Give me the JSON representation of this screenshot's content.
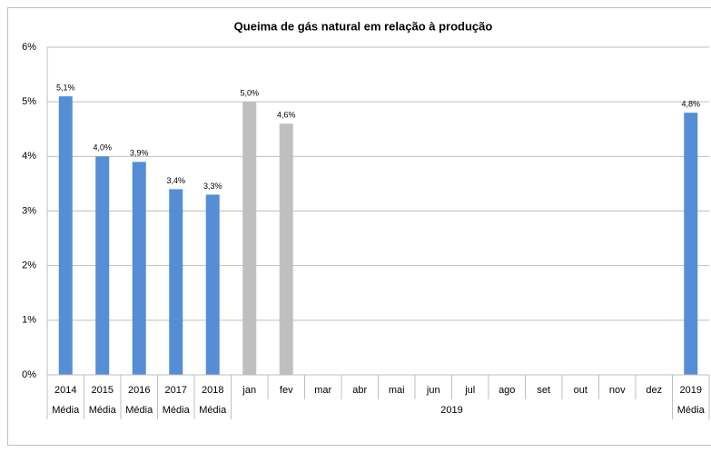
{
  "chart_data": {
    "type": "bar",
    "title": "Queima de gás natural em relação à produção",
    "categories": [
      "2014",
      "2015",
      "2016",
      "2017",
      "2018",
      "jan",
      "fev",
      "mar",
      "abr",
      "mai",
      "jun",
      "jul",
      "ago",
      "set",
      "out",
      "nov",
      "dez",
      "2019"
    ],
    "values": [
      5.1,
      4.0,
      3.9,
      3.4,
      3.3,
      5.0,
      4.6,
      null,
      null,
      null,
      null,
      null,
      null,
      null,
      null,
      null,
      null,
      4.8
    ],
    "value_labels": [
      "5,1%",
      "4,0%",
      "3,9%",
      "3,4%",
      "3,3%",
      "5,0%",
      "4,6%",
      null,
      null,
      null,
      null,
      null,
      null,
      null,
      null,
      null,
      null,
      "4,8%"
    ],
    "colors": [
      "#558ed5",
      "#558ed5",
      "#558ed5",
      "#558ed5",
      "#558ed5",
      "#bfbfbf",
      "#bfbfbf",
      null,
      null,
      null,
      null,
      null,
      null,
      null,
      null,
      null,
      null,
      "#558ed5"
    ],
    "groups": [
      {
        "label": "Média",
        "count": 1
      },
      {
        "label": "Média",
        "count": 1
      },
      {
        "label": "Média",
        "count": 1
      },
      {
        "label": "Média",
        "count": 1
      },
      {
        "label": "Média",
        "count": 1
      },
      {
        "label": "2019",
        "count": 12
      },
      {
        "label": "Média",
        "count": 1
      }
    ],
    "ylim": [
      0,
      6
    ],
    "yticks": [
      {
        "value": 0,
        "label": "0%"
      },
      {
        "value": 1,
        "label": "1%"
      },
      {
        "value": 2,
        "label": "2%"
      },
      {
        "value": 3,
        "label": "3%"
      },
      {
        "value": 4,
        "label": "4%"
      },
      {
        "value": 5,
        "label": "5%"
      },
      {
        "value": 6,
        "label": "6%"
      }
    ],
    "grid": true
  }
}
